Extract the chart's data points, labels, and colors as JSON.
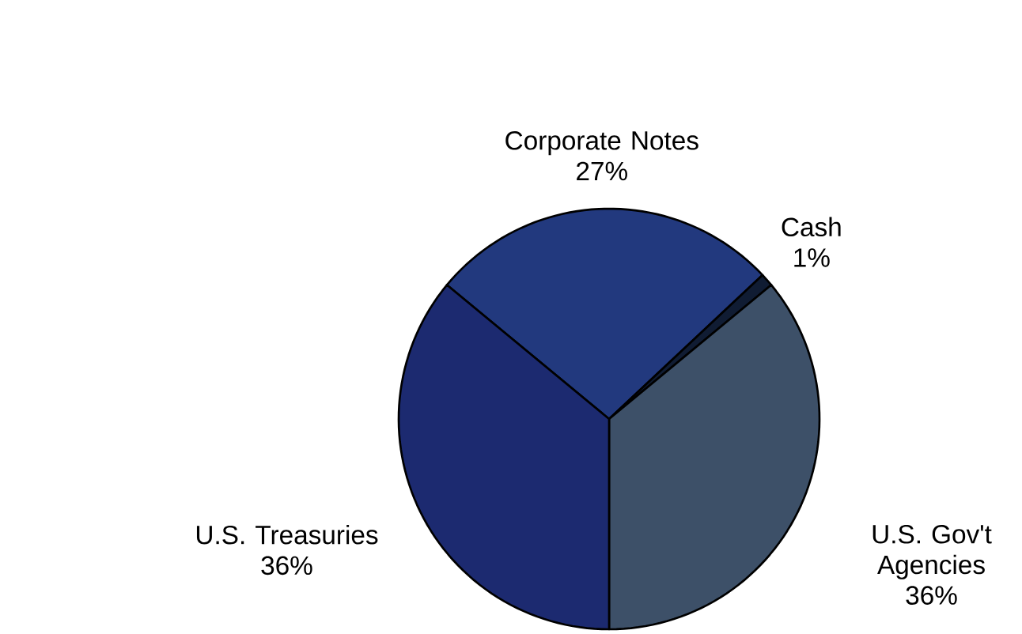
{
  "chart_data": {
    "type": "pie",
    "categories": [
      "Corporate Notes",
      "Cash",
      "U.S. Gov't Agencies",
      "U.S. Treasuries"
    ],
    "values": [
      27,
      1,
      36,
      36
    ],
    "value_labels": [
      "27%",
      "1%",
      "36%",
      "36%"
    ],
    "colors": [
      "#22397e",
      "#101c33",
      "#3d5068",
      "#1c2a70"
    ]
  }
}
